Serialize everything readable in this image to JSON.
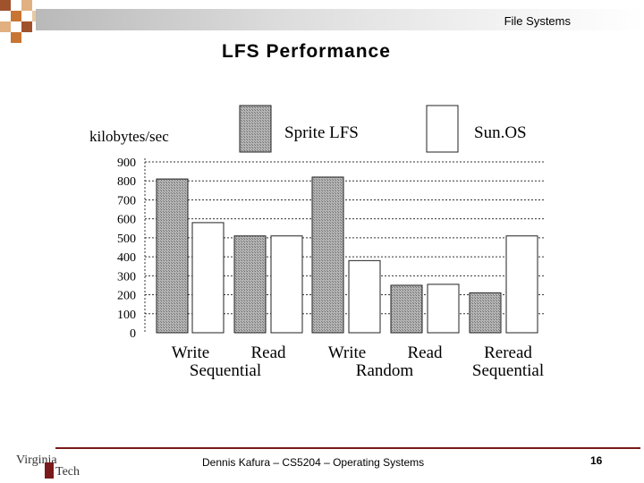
{
  "header": {
    "section": "File Systems"
  },
  "slide": {
    "title": "LFS Performance"
  },
  "footer": {
    "author": "Dennis Kafura – CS5204 – Operating Systems",
    "page": "16",
    "logo_line1": "Virginia",
    "logo_line2": "Tech"
  },
  "colors": {
    "accent": "#7a1a1a",
    "lfs_fill": "#9a9a9a",
    "sunos_fill": "#ffffff"
  },
  "chart_data": {
    "type": "bar",
    "ylabel": "kilobytes/sec",
    "ylim": [
      0,
      900
    ],
    "yticks": [
      0,
      100,
      200,
      300,
      400,
      500,
      600,
      700,
      800,
      900
    ],
    "grid": true,
    "legend_position": "top",
    "categories": [
      {
        "top": "Write",
        "bottom": ""
      },
      {
        "top": "Read",
        "bottom": "Sequential"
      },
      {
        "top": "Write",
        "bottom": ""
      },
      {
        "top": "Read",
        "bottom": "Random"
      },
      {
        "top": "Reread",
        "bottom": "Sequential"
      }
    ],
    "series": [
      {
        "name": "Sprite LFS",
        "values": [
          810,
          510,
          820,
          250,
          210
        ]
      },
      {
        "name": "Sun.OS",
        "values": [
          580,
          510,
          380,
          255,
          510
        ]
      }
    ]
  }
}
